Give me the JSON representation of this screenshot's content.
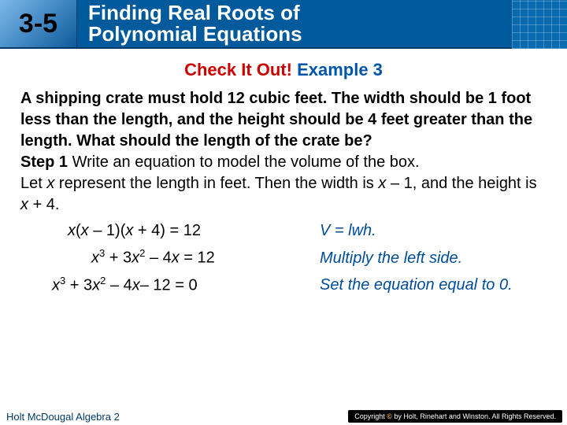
{
  "header": {
    "section_number": "3-5",
    "title_line1": "Finding Real Roots of",
    "title_line2": "Polynomial Equations"
  },
  "check": {
    "red": "Check It Out! ",
    "blue": "Example 3"
  },
  "problem": {
    "text": "A shipping crate must hold 12 cubic feet. The width should be 1 foot less than the length, and the height should be 4 feet greater than the length. What should the length of the crate be?",
    "step_label": "Step 1 ",
    "step_text": "Write an equation to model the volume of the box.",
    "let1": "Let ",
    "var_x": "x",
    "let2": " represent the length in feet. Then the width is ",
    "expr_w": "x ",
    "expr_w2": "– 1, and the height is ",
    "expr_h": "x ",
    "expr_h2": "+ 4."
  },
  "equations": {
    "e1_l": "x",
    "e1_l2": "(",
    "e1_l2b": "x",
    "e1_l3": " – 1)(",
    "e1_l3b": "x",
    "e1_l4": " + 4) = 12",
    "e1_r": "V = lwh.",
    "e2_l_a": "x",
    "e2_l_b": " + 3",
    "e2_l_c": "x",
    "e2_l_d": " – 4",
    "e2_l_e": "x",
    "e2_l_f": " = 12",
    "e2_r": "Multiply the left side.",
    "e3_l_a": "x",
    "e3_l_b": " + 3",
    "e3_l_c": "x",
    "e3_l_d": " – 4",
    "e3_l_e": "x",
    "e3_l_f": "– 12 = 0",
    "e3_r": "Set the equation equal to 0."
  },
  "footer": {
    "left": "Holt McDougal Algebra 2",
    "right_pre": "Copyright ",
    "right_c": "©",
    "right_post": " by Holt, Rinehart and Winston. All Rights Reserved."
  },
  "colors": {
    "header_bg": "#005a9c",
    "red": "#cc0000",
    "blue": "#0055aa",
    "explain_blue": "#004c99"
  }
}
